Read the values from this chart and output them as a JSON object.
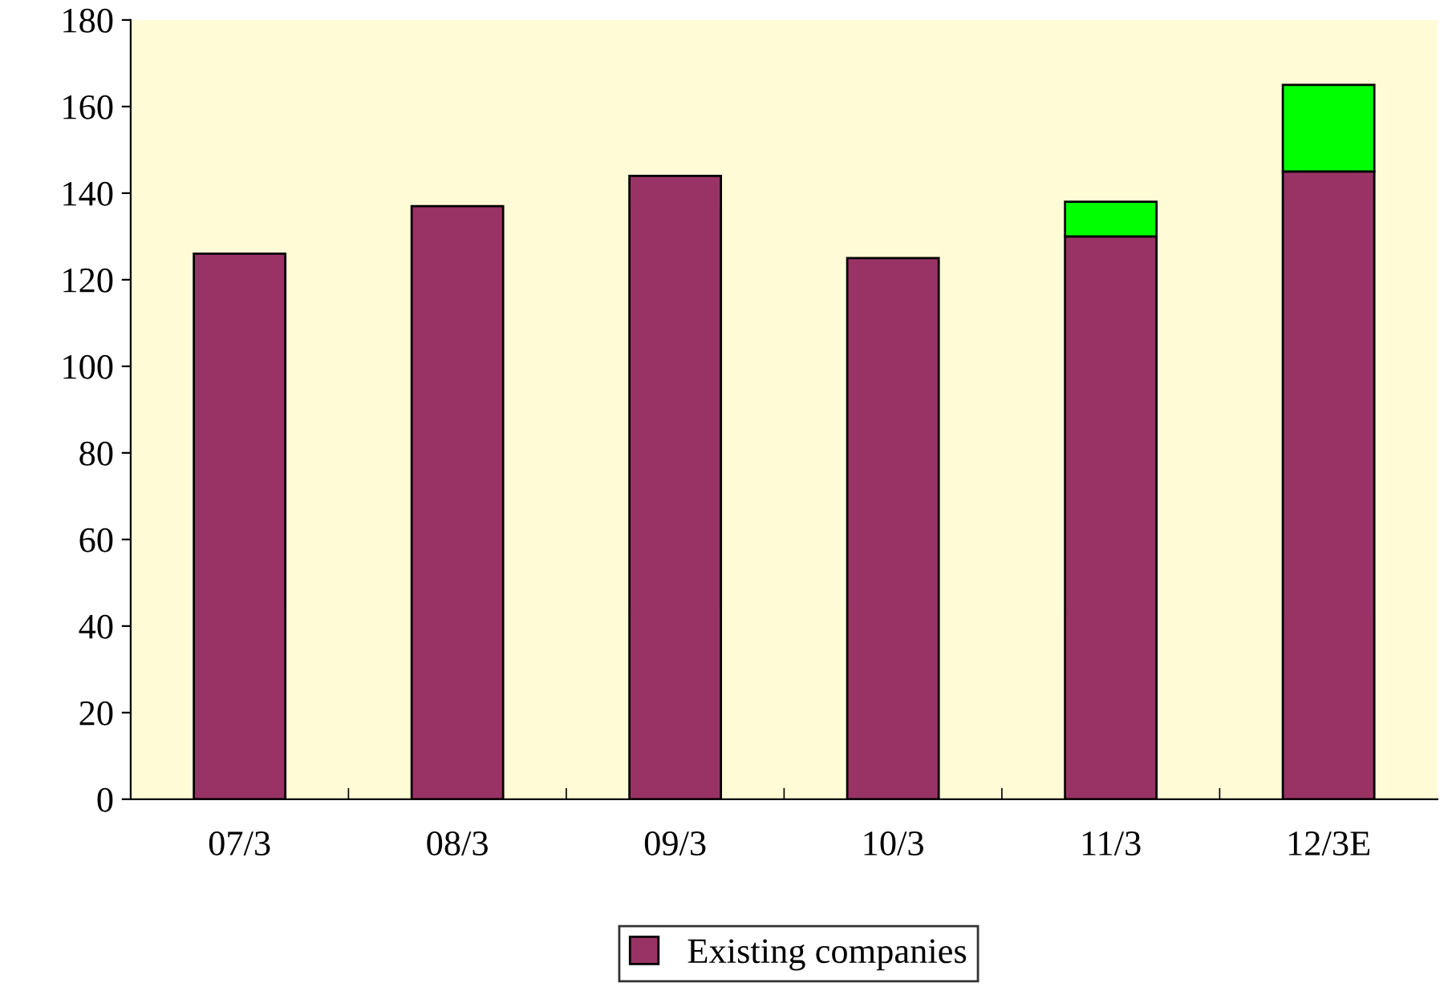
{
  "chart_data": {
    "type": "bar",
    "stacked": true,
    "categories": [
      "07/3",
      "08/3",
      "09/3",
      "10/3",
      "11/3",
      "12/3E"
    ],
    "series": [
      {
        "name": "Existing companies",
        "color": "#993366",
        "values": [
          126,
          137,
          144,
          125,
          130,
          145
        ]
      },
      {
        "color": "#00ff00",
        "values": [
          null,
          null,
          null,
          null,
          8,
          20
        ]
      }
    ],
    "ylim": [
      0,
      180
    ],
    "yticks": [
      0,
      20,
      40,
      60,
      80,
      100,
      120,
      140,
      160,
      180
    ],
    "grid": false,
    "legend": "bottom"
  }
}
